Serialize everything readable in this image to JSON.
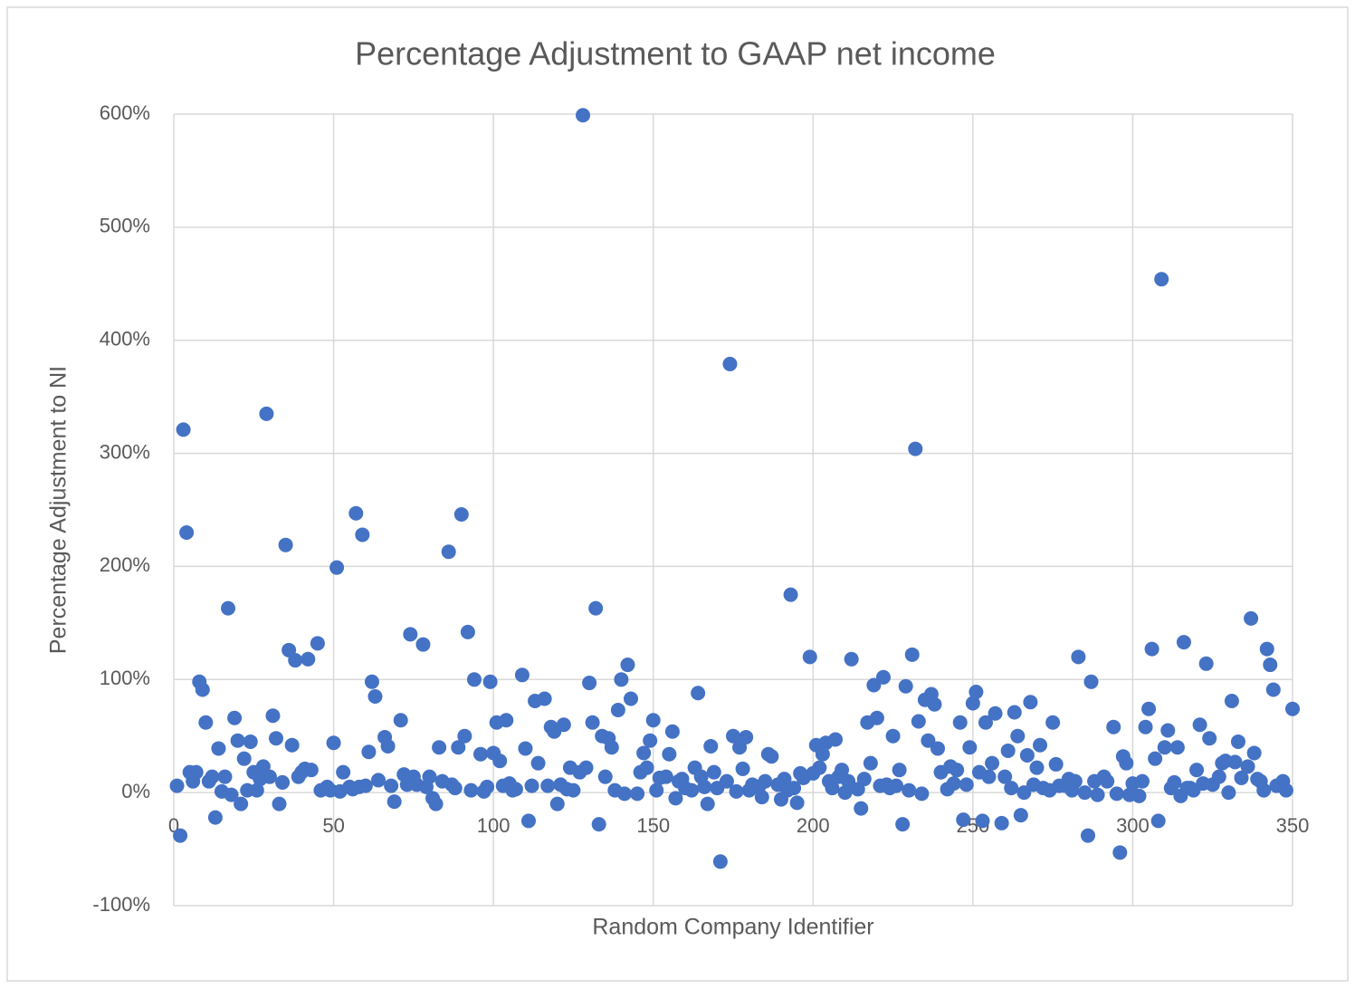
{
  "chart_data": {
    "type": "scatter",
    "title": "Percentage Adjustment to GAAP net income",
    "xlabel": "Random Company Identifier",
    "ylabel": "Percentage Adjustment to NI",
    "color": "#4472c4",
    "grid": true,
    "xlim": [
      0,
      350
    ],
    "ylim": [
      -100,
      600
    ],
    "xticks": [
      0,
      50,
      100,
      150,
      200,
      250,
      300,
      350
    ],
    "yticks": [
      {
        "value": -100,
        "label": "-100%"
      },
      {
        "value": 0,
        "label": "0%"
      },
      {
        "value": 100,
        "label": "100%"
      },
      {
        "value": 200,
        "label": "200%"
      },
      {
        "value": 300,
        "label": "300%"
      },
      {
        "value": 400,
        "label": "400%"
      },
      {
        "value": 500,
        "label": "500%"
      },
      {
        "value": 600,
        "label": "600%"
      }
    ],
    "x": [
      1,
      2,
      3,
      4,
      5,
      6,
      7,
      8,
      9,
      10,
      11,
      12,
      13,
      14,
      15,
      16,
      17,
      18,
      19,
      20,
      21,
      22,
      23,
      24,
      25,
      26,
      27,
      28,
      29,
      30,
      31,
      32,
      33,
      34,
      35,
      36,
      37,
      38,
      39,
      40,
      41,
      42,
      43,
      45,
      46,
      48,
      49,
      50,
      51,
      52,
      53,
      55,
      56,
      57,
      58,
      59,
      60,
      61,
      62,
      63,
      64,
      66,
      67,
      68,
      69,
      71,
      72,
      73,
      74,
      75,
      76,
      78,
      79,
      80,
      81,
      82,
      83,
      84,
      86,
      87,
      88,
      89,
      90,
      91,
      92,
      93,
      94,
      96,
      97,
      98,
      99,
      100,
      101,
      102,
      103,
      104,
      105,
      106,
      107,
      109,
      110,
      111,
      112,
      113,
      114,
      116,
      117,
      118,
      119,
      120,
      121,
      122,
      123,
      124,
      125,
      127,
      128,
      129,
      130,
      131,
      132,
      133,
      134,
      135,
      136,
      137,
      138,
      140,
      139,
      141,
      142,
      143,
      145,
      146,
      147,
      148,
      149,
      150,
      151,
      152,
      154,
      155,
      156,
      157,
      158,
      159,
      160,
      162,
      163,
      164,
      165,
      166,
      167,
      168,
      169,
      170,
      171,
      173,
      174,
      175,
      176,
      177,
      178,
      179,
      180,
      181,
      183,
      184,
      185,
      186,
      187,
      189,
      190,
      191,
      192,
      193,
      194,
      195,
      196,
      197,
      199,
      200,
      201,
      202,
      203,
      204,
      205,
      206,
      207,
      208,
      209,
      210,
      211,
      212,
      214,
      215,
      216,
      217,
      218,
      219,
      220,
      221,
      222,
      223,
      224,
      225,
      226,
      227,
      228,
      229,
      230,
      231,
      232,
      233,
      234,
      235,
      236,
      237,
      238,
      239,
      240,
      242,
      243,
      244,
      245,
      246,
      247,
      248,
      249,
      250,
      251,
      252,
      253,
      254,
      255,
      256,
      257,
      259,
      260,
      261,
      262,
      263,
      264,
      265,
      266,
      267,
      268,
      269,
      270,
      271,
      272,
      274,
      275,
      276,
      277,
      279,
      280,
      281,
      282,
      283,
      285,
      286,
      287,
      288,
      289,
      291,
      292,
      294,
      295,
      296,
      297,
      298,
      299,
      300,
      302,
      303,
      304,
      305,
      306,
      307,
      308,
      309,
      310,
      311,
      312,
      313,
      314,
      315,
      316,
      317,
      318,
      319,
      320,
      321,
      322,
      323,
      324,
      325,
      327,
      328,
      329,
      330,
      331,
      332,
      333,
      334,
      336,
      337,
      338,
      339,
      340,
      341,
      342,
      343,
      344,
      345,
      346,
      347,
      348,
      350
    ],
    "values": [
      6,
      -38,
      321,
      230,
      18,
      10,
      18,
      98,
      91,
      62,
      10,
      14,
      -22,
      39,
      1,
      14,
      163,
      -2,
      66,
      46,
      -10,
      30,
      2,
      45,
      18,
      2,
      12,
      23,
      335,
      14,
      68,
      48,
      -10,
      9,
      219,
      126,
      42,
      117,
      14,
      18,
      21,
      118,
      20,
      132,
      2,
      5,
      2,
      44,
      199,
      1,
      18,
      5,
      3,
      247,
      5,
      228,
      6,
      36,
      98,
      85,
      11,
      49,
      41,
      6,
      -8,
      64,
      16,
      7,
      140,
      14,
      7,
      131,
      5,
      14,
      -5,
      -10,
      40,
      10,
      213,
      7,
      4,
      40,
      246,
      50,
      142,
      2,
      100,
      34,
      1,
      5,
      98,
      35,
      62,
      28,
      6,
      64,
      8,
      2,
      3,
      104,
      39,
      -25,
      6,
      81,
      26,
      83,
      6,
      58,
      54,
      -10,
      7,
      60,
      3,
      22,
      2,
      18,
      599,
      22,
      97,
      62,
      163,
      -28,
      50,
      14,
      48,
      40,
      2,
      100,
      73,
      -1,
      113,
      83,
      -1,
      18,
      35,
      22,
      46,
      64,
      2,
      13,
      14,
      34,
      54,
      -5,
      10,
      12,
      4,
      2,
      22,
      88,
      14,
      5,
      -10,
      41,
      18,
      4,
      -61,
      10,
      379,
      50,
      1,
      40,
      21,
      49,
      2,
      7,
      5,
      -4,
      10,
      34,
      32,
      7,
      -6,
      12,
      2,
      175,
      4,
      -9,
      17,
      13,
      120,
      17,
      42,
      22,
      34,
      44,
      10,
      4,
      47,
      14,
      20,
      0,
      10,
      118,
      3,
      -14,
      12,
      62,
      26,
      95,
      66,
      6,
      102,
      7,
      4,
      50,
      6,
      20,
      -28,
      94,
      2,
      122,
      304,
      63,
      -1,
      82,
      46,
      87,
      78,
      39,
      18,
      3,
      23,
      8,
      20,
      62,
      -24,
      7,
      40,
      79,
      89,
      18,
      -25,
      62,
      14,
      26,
      70,
      -27,
      14,
      37,
      4,
      71,
      50,
      -20,
      0,
      33,
      80,
      7,
      22,
      42,
      4,
      2,
      62,
      25,
      6,
      6,
      12,
      2,
      10,
      120,
      0,
      -38,
      98,
      10,
      -2,
      14,
      10,
      58,
      -1,
      -53,
      32,
      26,
      -2,
      8,
      -3,
      10,
      58,
      74,
      127,
      30,
      -25,
      454,
      40,
      55,
      4,
      9,
      40,
      -3,
      133,
      4,
      4,
      2,
      20,
      60,
      8,
      114,
      48,
      7,
      14,
      26,
      28,
      0,
      81,
      27,
      45,
      13,
      23,
      154,
      35,
      12,
      10,
      2,
      127,
      113,
      91,
      6,
      7,
      10,
      2,
      74
    ]
  }
}
